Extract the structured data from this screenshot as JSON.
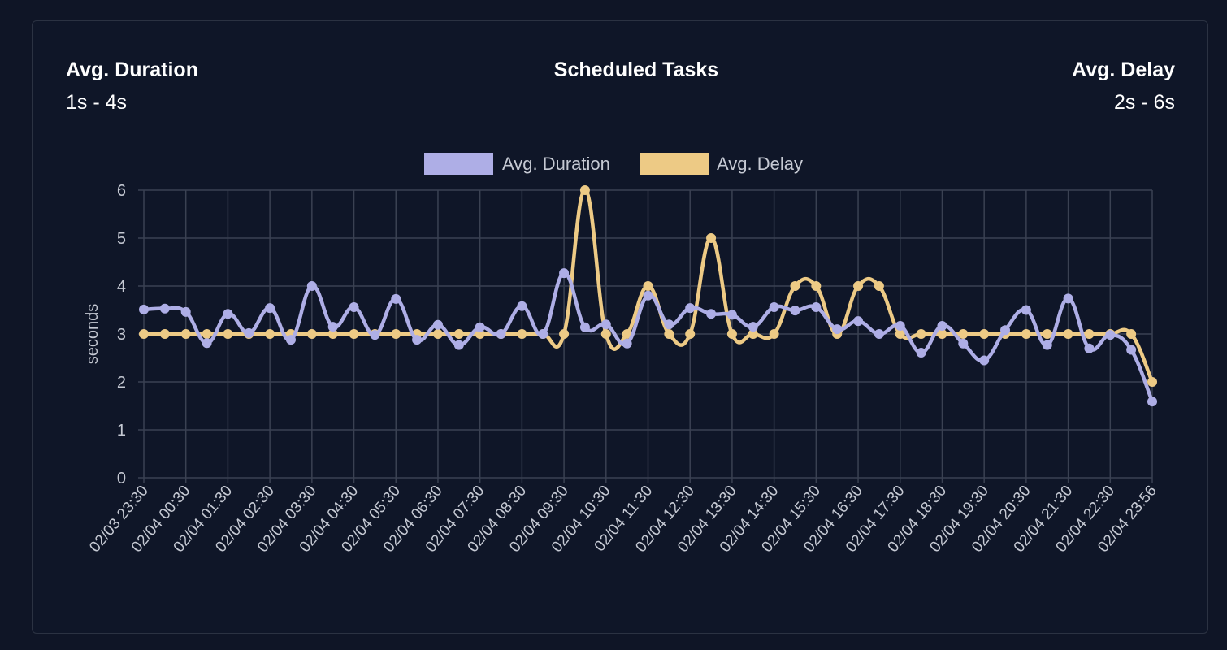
{
  "header": {
    "left_title": "Avg. Duration",
    "left_value": "1s - 4s",
    "center_title": "Scheduled Tasks",
    "right_title": "Avg. Delay",
    "right_value": "2s - 6s"
  },
  "chart_data": {
    "type": "line",
    "title": "Scheduled Tasks",
    "ylabel": "seconds",
    "xlabel": "",
    "ylim": [
      0,
      6
    ],
    "y_ticks": [
      "0",
      "1",
      "2",
      "3",
      "4",
      "5",
      "6"
    ],
    "grid": true,
    "legend_position": "top",
    "x_tick_labels": [
      "02/03 23:30",
      "02/04 00:30",
      "02/04 01:30",
      "02/04 02:30",
      "02/04 03:30",
      "02/04 04:30",
      "02/04 05:30",
      "02/04 06:30",
      "02/04 07:30",
      "02/04 08:30",
      "02/04 09:30",
      "02/04 10:30",
      "02/04 11:30",
      "02/04 12:30",
      "02/04 13:30",
      "02/04 14:30",
      "02/04 15:30",
      "02/04 16:30",
      "02/04 17:30",
      "02/04 18:30",
      "02/04 19:30",
      "02/04 20:30",
      "02/04 21:30",
      "02/04 22:30",
      "02/04 23:56"
    ],
    "series": [
      {
        "name": "Avg. Duration",
        "color": "#aeaee6",
        "values": [
          3.51,
          3.53,
          3.46,
          2.81,
          3.42,
          3.02,
          3.54,
          2.88,
          4.0,
          3.15,
          3.56,
          2.98,
          3.73,
          2.88,
          3.19,
          2.77,
          3.14,
          3.0,
          3.58,
          3.0,
          4.27,
          3.14,
          3.2,
          2.8,
          3.8,
          3.2,
          3.54,
          3.42,
          3.4,
          3.15,
          3.56,
          3.49,
          3.56,
          3.1,
          3.27,
          3.0,
          3.17,
          2.61,
          3.17,
          2.8,
          2.45,
          3.08,
          3.5,
          2.77,
          3.74,
          2.7,
          2.98,
          2.67,
          1.59
        ]
      },
      {
        "name": "Avg. Delay",
        "color": "#edca85",
        "values": [
          3,
          3,
          3,
          3,
          3,
          3,
          3,
          3,
          3,
          3,
          3,
          3,
          3,
          3,
          3,
          3,
          3,
          3,
          3,
          3,
          3,
          6,
          3,
          3,
          4,
          3,
          3,
          5,
          3,
          3,
          3,
          4,
          4,
          3,
          4,
          4,
          3,
          3,
          3,
          3,
          3,
          3,
          3,
          3,
          3,
          3,
          3,
          3,
          2
        ]
      }
    ]
  }
}
